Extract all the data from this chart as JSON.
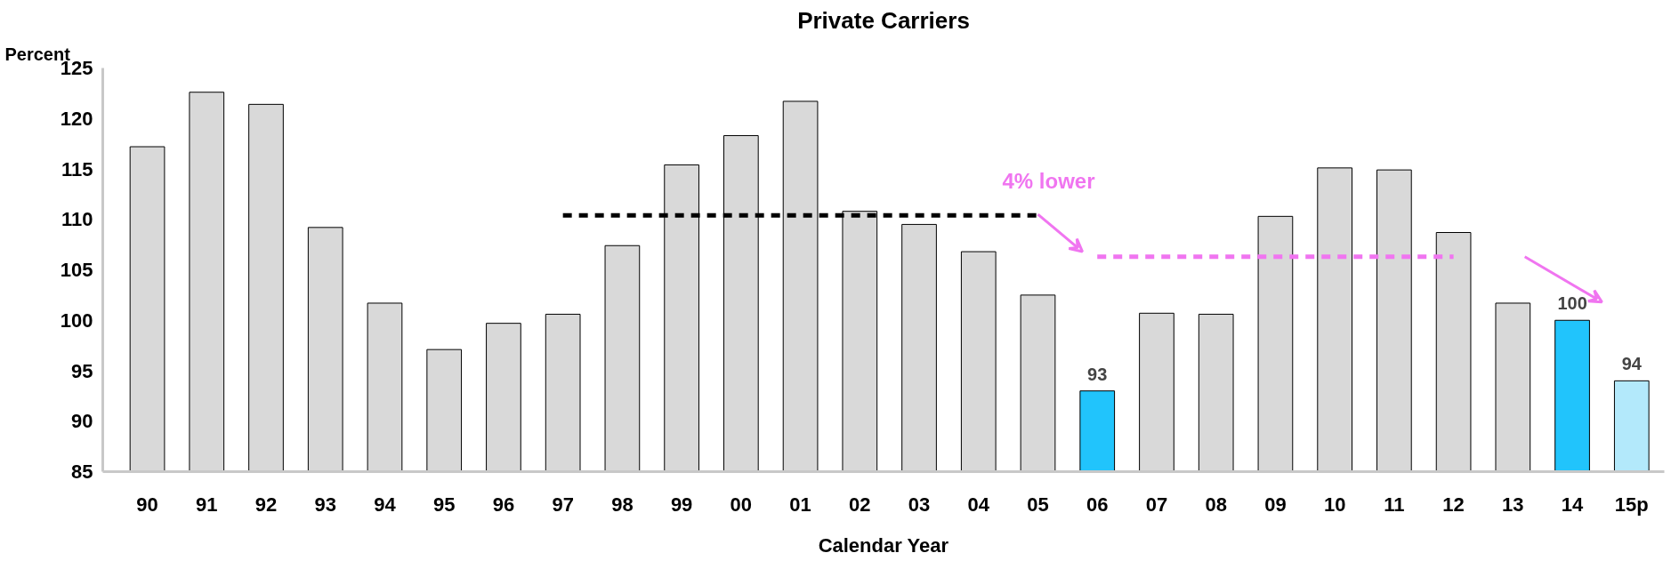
{
  "chart_data": {
    "type": "bar",
    "title": "Private Carriers",
    "xlabel": "Calendar Year",
    "ylabel": "Percent",
    "categories": [
      "90",
      "91",
      "92",
      "93",
      "94",
      "95",
      "96",
      "97",
      "98",
      "99",
      "00",
      "01",
      "02",
      "03",
      "04",
      "05",
      "06",
      "07",
      "08",
      "09",
      "10",
      "11",
      "12",
      "13",
      "14",
      "15p"
    ],
    "series": [
      {
        "values": [
          117.2,
          122.6,
          121.4,
          109.2,
          101.7,
          97.1,
          99.7,
          100.6,
          107.4,
          115.4,
          118.3,
          121.7,
          110.8,
          109.5,
          106.8,
          102.5,
          93,
          100.7,
          100.6,
          110.3,
          115.1,
          114.9,
          108.7,
          101.7,
          100,
          94
        ],
        "colors": [
          "#d9d9d9",
          "#d9d9d9",
          "#d9d9d9",
          "#d9d9d9",
          "#d9d9d9",
          "#d9d9d9",
          "#d9d9d9",
          "#d9d9d9",
          "#d9d9d9",
          "#d9d9d9",
          "#d9d9d9",
          "#d9d9d9",
          "#d9d9d9",
          "#d9d9d9",
          "#d9d9d9",
          "#d9d9d9",
          "#21c4fc",
          "#d9d9d9",
          "#d9d9d9",
          "#d9d9d9",
          "#d9d9d9",
          "#d9d9d9",
          "#d9d9d9",
          "#d9d9d9",
          "#21c4fc",
          "#b3e9fb"
        ],
        "value_labels": [
          null,
          null,
          null,
          null,
          null,
          null,
          null,
          null,
          null,
          null,
          null,
          null,
          null,
          null,
          null,
          null,
          "93",
          null,
          null,
          null,
          null,
          null,
          null,
          null,
          "100",
          "94"
        ]
      },
      {
        "type": "line",
        "color": "#000000",
        "line_style": "dashed",
        "values": [
          null,
          null,
          null,
          null,
          null,
          null,
          null,
          110.4,
          110.4,
          110.4,
          110.4,
          110.4,
          110.4,
          110.4,
          110.4,
          110.4,
          null,
          null,
          null,
          null,
          null,
          null,
          null,
          null,
          null,
          null
        ]
      },
      {
        "type": "line",
        "color": "#f075f0",
        "line_style": "dashed",
        "values": [
          null,
          null,
          null,
          null,
          null,
          null,
          null,
          null,
          null,
          null,
          null,
          null,
          null,
          null,
          null,
          null,
          106.3,
          106.3,
          106.3,
          106.3,
          106.3,
          106.3,
          106.3,
          null,
          null,
          null
        ]
      }
    ],
    "annotations": [
      "4% lower"
    ],
    "ylim": [
      85,
      125
    ],
    "yticks": [
      85,
      90,
      95,
      100,
      105,
      110,
      115,
      120,
      125
    ],
    "grid": false
  }
}
